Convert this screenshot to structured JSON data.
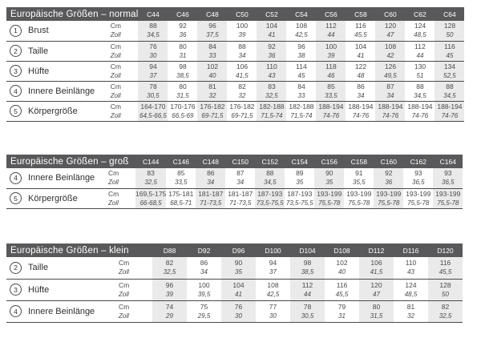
{
  "styles": {
    "header_bg": "#59595b",
    "header_text": "#ffffff",
    "stripe_bg": "#eaeaea",
    "line_color": "#4a4a4a",
    "page_bg": "#ffffff"
  },
  "units": {
    "cm": "Cm",
    "zoll": "Zoll"
  },
  "tables": [
    {
      "id": "normal",
      "title": "Europäische Größen – normal",
      "columns": [
        "C44",
        "C46",
        "C48",
        "C50",
        "C52",
        "C54",
        "C56",
        "C58",
        "C60",
        "C62",
        "C64"
      ],
      "rows": [
        {
          "num": "1",
          "label": "Brust",
          "cm": [
            "88",
            "92",
            "96",
            "100",
            "104",
            "108",
            "112",
            "116",
            "120",
            "124",
            "128"
          ],
          "zoll": [
            "34,5",
            "36",
            "37,5",
            "39",
            "41",
            "42,5",
            "44",
            "45,5",
            "47",
            "48,5",
            "50"
          ]
        },
        {
          "num": "2",
          "label": "Taille",
          "cm": [
            "76",
            "80",
            "84",
            "88",
            "92",
            "96",
            "100",
            "104",
            "108",
            "112",
            "116"
          ],
          "zoll": [
            "30",
            "31",
            "33",
            "34",
            "36",
            "38",
            "39",
            "41",
            "42",
            "44",
            "45"
          ]
        },
        {
          "num": "3",
          "label": "Hüfte",
          "cm": [
            "94",
            "98",
            "102",
            "106",
            "110",
            "114",
            "118",
            "122",
            "126",
            "130",
            "134"
          ],
          "zoll": [
            "37",
            "38,5",
            "40",
            "41,5",
            "43",
            "45",
            "46",
            "48",
            "49,5",
            "51",
            "52,5"
          ]
        },
        {
          "num": "4",
          "label": "Innere Beinlänge",
          "cm": [
            "78",
            "80",
            "81",
            "82",
            "83",
            "84",
            "85",
            "86",
            "87",
            "88",
            "88"
          ],
          "zoll": [
            "30,5",
            "31,5",
            "32",
            "32",
            "32,5",
            "33",
            "33,5",
            "34",
            "34",
            "34,5",
            "34,5"
          ]
        },
        {
          "num": "5",
          "label": "Körpergröße",
          "cm": [
            "164-170",
            "170-176",
            "176-182",
            "176-182",
            "182-188",
            "182-188",
            "188-194",
            "188-194",
            "188-194",
            "188-194",
            "188-194"
          ],
          "zoll": [
            "64,5-66,5",
            "66,5-69",
            "69-71,5",
            "69-71,5",
            "71,5-74",
            "71,5-74",
            "74-76",
            "74-76",
            "74-76",
            "74-76",
            "74-76"
          ]
        }
      ]
    },
    {
      "id": "gross",
      "title": "Europäische Größen – groß",
      "columns": [
        "C144",
        "C146",
        "C148",
        "C150",
        "C152",
        "C154",
        "C156",
        "C158",
        "C160",
        "C162",
        "C164"
      ],
      "rows": [
        {
          "num": "4",
          "label": "Innere Beinlänge",
          "cm": [
            "83",
            "85",
            "86",
            "87",
            "88",
            "89",
            "90",
            "91",
            "92",
            "93",
            "93"
          ],
          "zoll": [
            "32,5",
            "33,5",
            "34",
            "34",
            "34,5",
            "35",
            "35",
            "35,5",
            "36",
            "36,5",
            "36,5"
          ]
        },
        {
          "num": "5",
          "label": "Körpergröße",
          "cm": [
            "169,5-175",
            "175-181",
            "181-187",
            "181-187",
            "187-193",
            "187-193",
            "193-199",
            "193-199",
            "193-199",
            "193-199",
            "193-199"
          ],
          "zoll": [
            "66-68,5",
            "68,5-71",
            "71-73,5",
            "71-73,5",
            "73,5-75,5",
            "73,5-75,5",
            "75,5-78",
            "75,5-78",
            "75,5-78",
            "75,5-78",
            "75,5-78"
          ]
        }
      ]
    },
    {
      "id": "klein",
      "title": "Europäische Größen – klein",
      "columns": [
        "D88",
        "D92",
        "D96",
        "D100",
        "D104",
        "D108",
        "D112",
        "D116",
        "D120"
      ],
      "rows": [
        {
          "num": "2",
          "label": "Taille",
          "cm": [
            "82",
            "86",
            "90",
            "94",
            "98",
            "102",
            "106",
            "110",
            "116"
          ],
          "zoll": [
            "32,5",
            "34",
            "35",
            "37",
            "38,5",
            "40",
            "41,5",
            "43",
            "45,5"
          ]
        },
        {
          "num": "3",
          "label": "Hüfte",
          "cm": [
            "96",
            "100",
            "104",
            "108",
            "112",
            "116",
            "120",
            "124",
            "128"
          ],
          "zoll": [
            "39",
            "39,5",
            "41",
            "42,5",
            "44",
            "45,5",
            "47",
            "48,5",
            "50"
          ]
        },
        {
          "num": "4",
          "label": "Innere Beinlänge",
          "cm": [
            "74",
            "75",
            "76",
            "77",
            "78",
            "79",
            "80",
            "81",
            "82"
          ],
          "zoll": [
            "29",
            "29,5",
            "30",
            "30",
            "30,5",
            "31",
            "31,5",
            "32",
            "32,5"
          ]
        }
      ]
    }
  ]
}
